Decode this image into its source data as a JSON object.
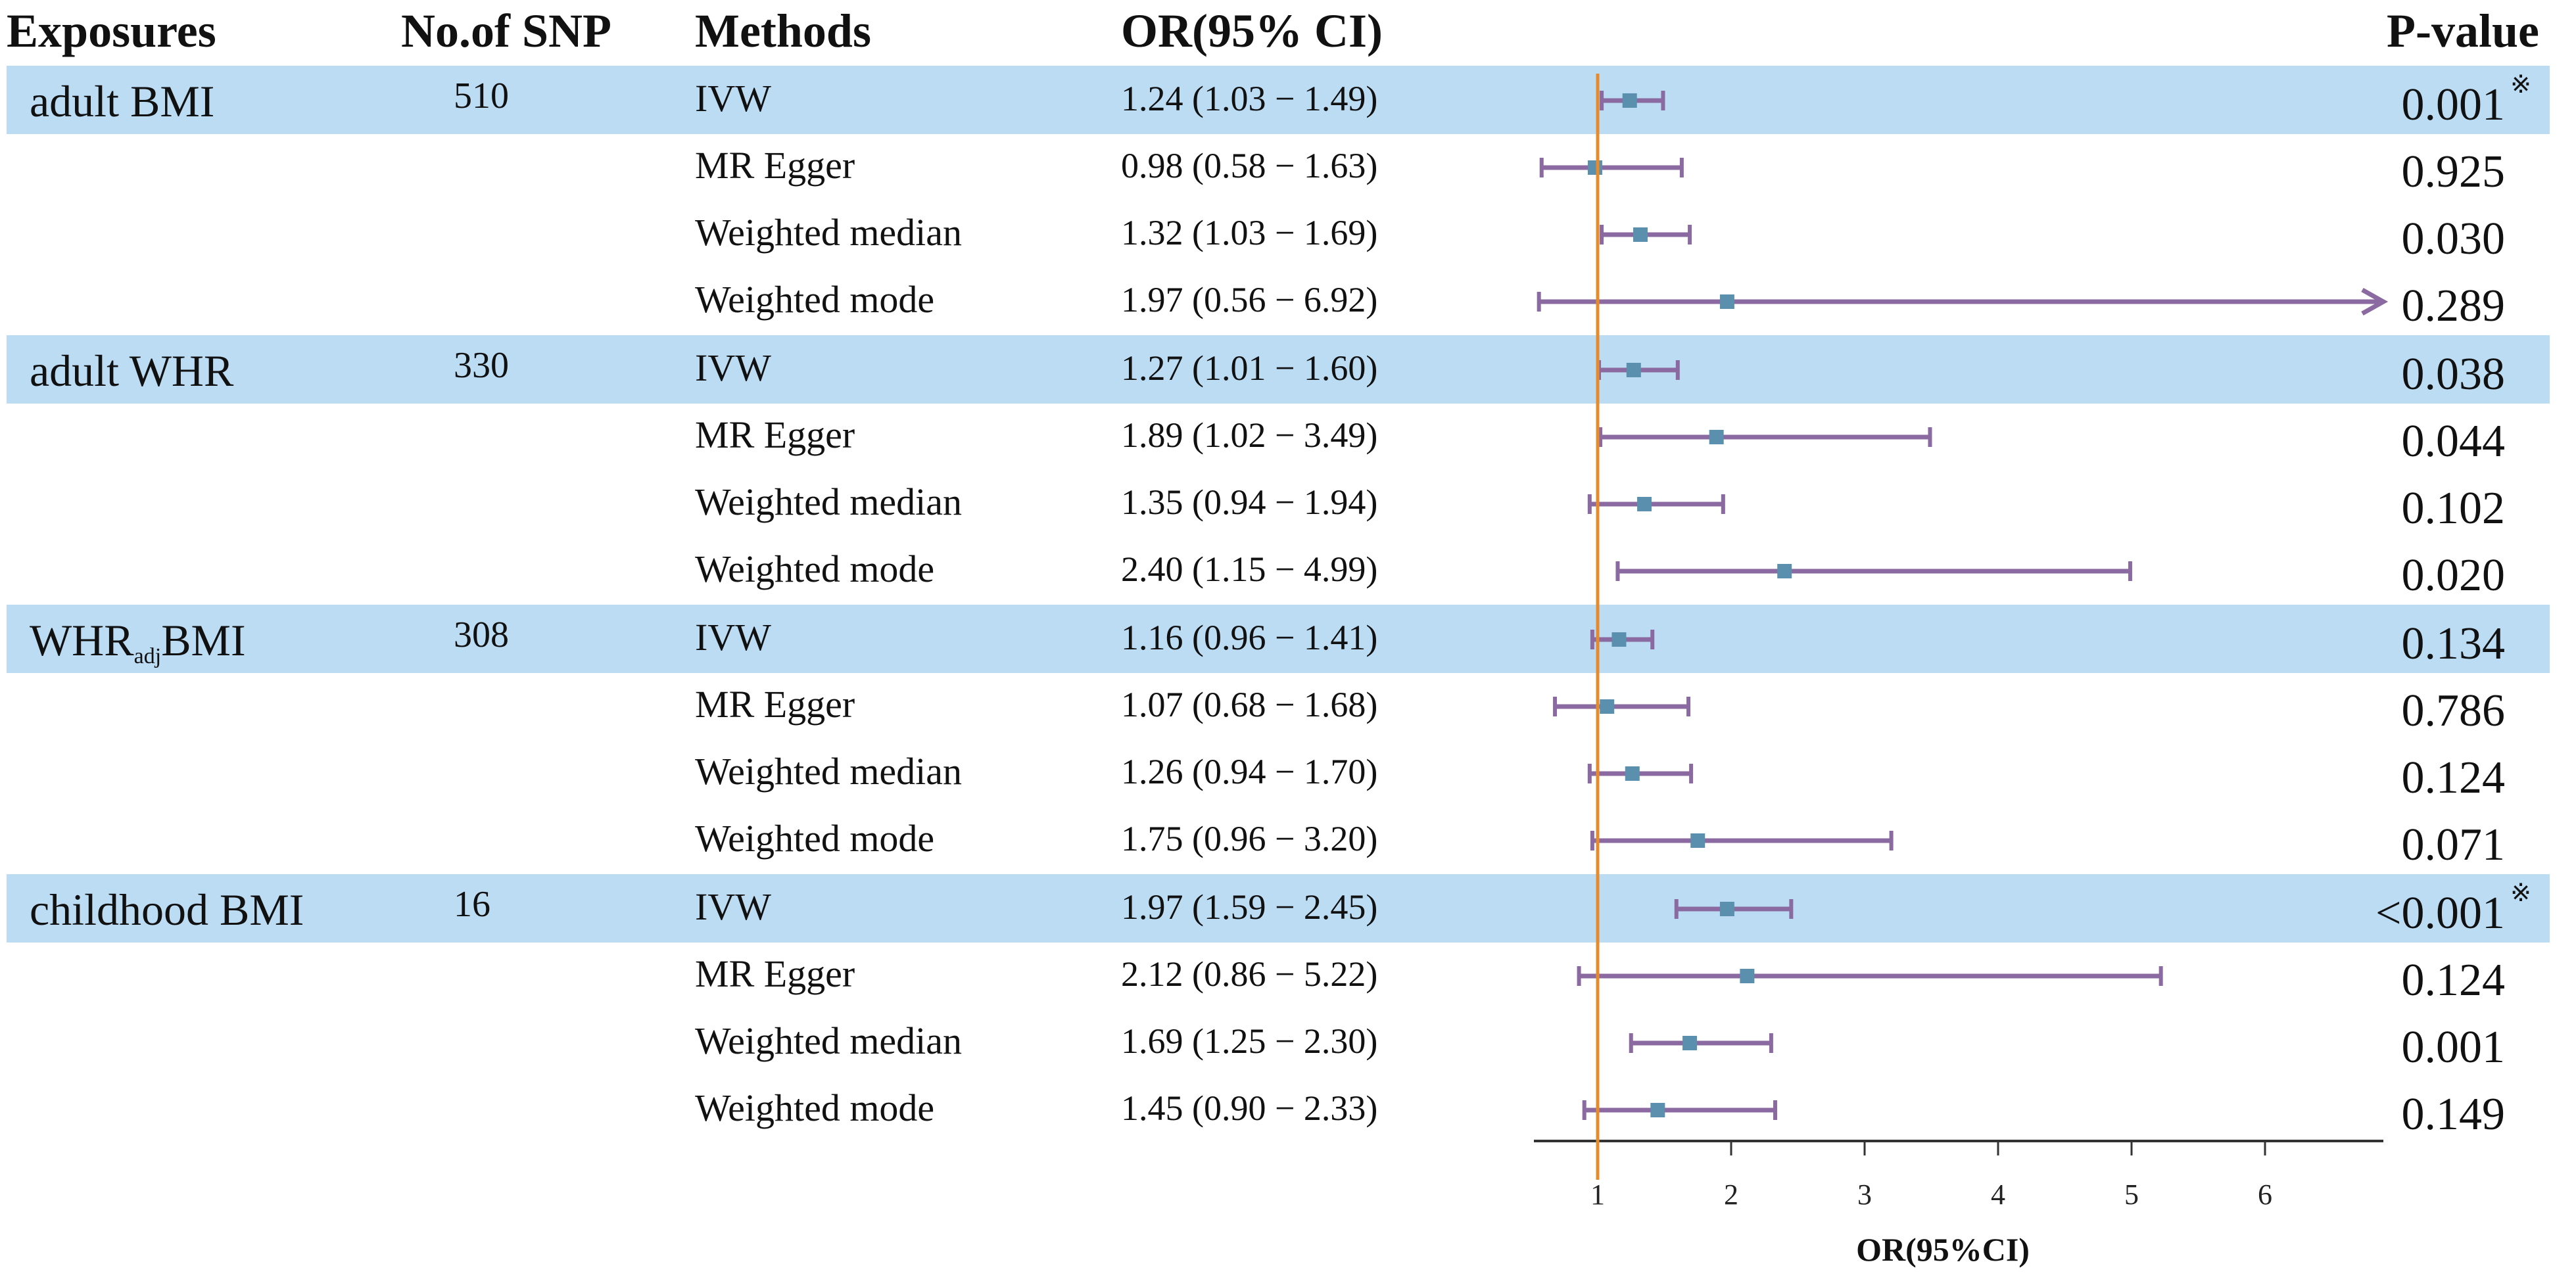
{
  "headers": {
    "exposures": "Exposures",
    "nsnp": "No.of SNP",
    "methods": "Methods",
    "orci": "OR(95% CI)",
    "pvalue": "P-value"
  },
  "rows": [
    {
      "exposure": "adult BMI",
      "nsnp": "510",
      "method": "IVW",
      "orci": "1.24 (1.03 − 1.49)",
      "pvalue": "0.001",
      "star": "※"
    },
    {
      "exposure": "",
      "nsnp": "",
      "method": "MR Egger",
      "orci": "0.98 (0.58 − 1.63)",
      "pvalue": "0.925",
      "star": ""
    },
    {
      "exposure": "",
      "nsnp": "",
      "method": "Weighted median",
      "orci": "1.32 (1.03 − 1.69)",
      "pvalue": "0.030",
      "star": ""
    },
    {
      "exposure": "",
      "nsnp": "",
      "method": "Weighted mode",
      "orci": "1.97 (0.56 − 6.92)",
      "pvalue": "0.289",
      "star": ""
    },
    {
      "exposure": "adult WHR",
      "nsnp": "330",
      "method": "IVW",
      "orci": "1.27 (1.01 − 1.60)",
      "pvalue": "0.038",
      "star": ""
    },
    {
      "exposure": "",
      "nsnp": "",
      "method": "MR Egger",
      "orci": "1.89 (1.02 − 3.49)",
      "pvalue": "0.044",
      "star": ""
    },
    {
      "exposure": "",
      "nsnp": "",
      "method": "Weighted median",
      "orci": "1.35 (0.94 − 1.94)",
      "pvalue": "0.102",
      "star": ""
    },
    {
      "exposure": "",
      "nsnp": "",
      "method": "Weighted mode",
      "orci": "2.40 (1.15 − 4.99)",
      "pvalue": "0.020",
      "star": ""
    },
    {
      "exposure": "WHR",
      "exposure_sub": "adj",
      "exposure_tail": "BMI",
      "nsnp": "308",
      "method": "IVW",
      "orci": "1.16 (0.96 − 1.41)",
      "pvalue": "0.134",
      "star": ""
    },
    {
      "exposure": "",
      "nsnp": "",
      "method": "MR Egger",
      "orci": "1.07 (0.68 − 1.68)",
      "pvalue": "0.786",
      "star": ""
    },
    {
      "exposure": "",
      "nsnp": "",
      "method": "Weighted median",
      "orci": "1.26 (0.94 − 1.70)",
      "pvalue": "0.124",
      "star": ""
    },
    {
      "exposure": "",
      "nsnp": "",
      "method": "Weighted mode",
      "orci": "1.75 (0.96 − 3.20)",
      "pvalue": "0.071",
      "star": ""
    },
    {
      "exposure": "childhood BMI",
      "nsnp": "16",
      "method": "IVW",
      "orci": "1.97 (1.59 − 2.45)",
      "pvalue": "<0.001",
      "star": "※"
    },
    {
      "exposure": "",
      "nsnp": "",
      "method": "MR Egger",
      "orci": "2.12 (0.86 − 5.22)",
      "pvalue": "0.124",
      "star": ""
    },
    {
      "exposure": "",
      "nsnp": "",
      "method": "Weighted median",
      "orci": "1.69 (1.25 − 2.30)",
      "pvalue": "0.001",
      "star": ""
    },
    {
      "exposure": "",
      "nsnp": "",
      "method": "Weighted mode",
      "orci": "1.45 (0.90 − 2.33)",
      "pvalue": "0.149",
      "star": ""
    }
  ],
  "chart_data": {
    "type": "forest",
    "xlabel": "OR(95%CI)",
    "xlim": [
      0.5,
      7.0
    ],
    "ticks": [
      1,
      2,
      3,
      4,
      5,
      6
    ],
    "reference_line": 1,
    "truncated_arrow_upper": 6.9,
    "colors": {
      "ci_line": "#8a6aa0",
      "point": "#5b8fae",
      "reference": "#e58b2e",
      "band": "#bcdcf4",
      "axis": "#333333"
    },
    "points": [
      {
        "or": 1.24,
        "lo": 1.03,
        "hi": 1.49
      },
      {
        "or": 0.98,
        "lo": 0.58,
        "hi": 1.63
      },
      {
        "or": 1.32,
        "lo": 1.03,
        "hi": 1.69
      },
      {
        "or": 1.97,
        "lo": 0.56,
        "hi": 6.92
      },
      {
        "or": 1.27,
        "lo": 1.01,
        "hi": 1.6
      },
      {
        "or": 1.89,
        "lo": 1.02,
        "hi": 3.49
      },
      {
        "or": 1.35,
        "lo": 0.94,
        "hi": 1.94
      },
      {
        "or": 2.4,
        "lo": 1.15,
        "hi": 4.99
      },
      {
        "or": 1.16,
        "lo": 0.96,
        "hi": 1.41
      },
      {
        "or": 1.07,
        "lo": 0.68,
        "hi": 1.68
      },
      {
        "or": 1.26,
        "lo": 0.94,
        "hi": 1.7
      },
      {
        "or": 1.75,
        "lo": 0.96,
        "hi": 3.2
      },
      {
        "or": 1.97,
        "lo": 1.59,
        "hi": 2.45
      },
      {
        "or": 2.12,
        "lo": 0.86,
        "hi": 5.22
      },
      {
        "or": 1.69,
        "lo": 1.25,
        "hi": 2.3
      },
      {
        "or": 1.45,
        "lo": 0.9,
        "hi": 2.33
      }
    ]
  }
}
